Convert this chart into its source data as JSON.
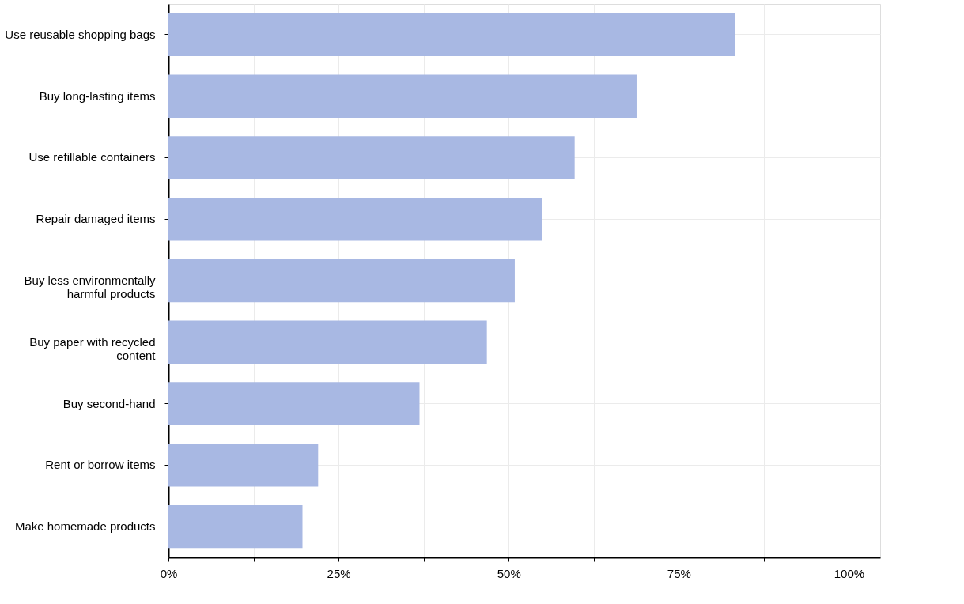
{
  "chart_data": {
    "type": "bar",
    "orientation": "horizontal",
    "categories": [
      "Use reusable shopping bags",
      "Buy long-lasting items",
      "Use refillable containers",
      "Repair damaged items",
      "Buy less environmentally harmful products",
      "Buy paper with recycled content",
      "Buy second-hand",
      "Rent or borrow items",
      "Make homemade products"
    ],
    "values": [
      83.3,
      68.8,
      59.7,
      54.9,
      50.9,
      46.8,
      36.9,
      22.0,
      19.7
    ],
    "color": "#a8b8e3",
    "xlim": [
      0,
      104.6
    ],
    "xticks": [
      {
        "value": 0,
        "label": "0%"
      },
      {
        "value": 12.5,
        "label": null
      },
      {
        "value": 25,
        "label": "25%"
      },
      {
        "value": 37.5,
        "label": null
      },
      {
        "value": 50,
        "label": "50%"
      },
      {
        "value": 62.5,
        "label": null
      },
      {
        "value": 75,
        "label": "75%"
      },
      {
        "value": 87.5,
        "label": null
      },
      {
        "value": 100,
        "label": "100%"
      }
    ],
    "grid": true
  }
}
